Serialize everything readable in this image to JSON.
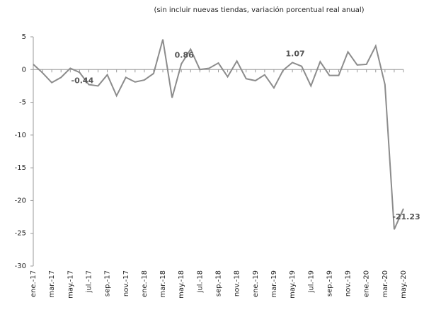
{
  "chart_data": {
    "type": "line",
    "subtitle": "(sin incluir nuevas tiendas, variación porcentual real anual)",
    "categories": [
      "ene.-17",
      null,
      "mar.-17",
      null,
      "may.-17",
      null,
      "jul.-17",
      null,
      "sep.-17",
      null,
      "nov.-17",
      null,
      "ene.-18",
      null,
      "mar.-18",
      null,
      "may.-18",
      null,
      "jul.-18",
      null,
      "sep.-18",
      null,
      "nov.-18",
      null,
      "ene.-19",
      null,
      "mar.-19",
      null,
      "may.-19",
      null,
      "jul.-19",
      null,
      "sep.-19",
      null,
      "nov.-19",
      null,
      "ene.-20",
      null,
      "mar.-20",
      null,
      "may.-20"
    ],
    "series": [
      {
        "name": null,
        "color": "#8c8c8c",
        "values": [
          0.8,
          -0.5,
          -2.0,
          -1.2,
          0.2,
          -0.44,
          -2.3,
          -2.5,
          -0.8,
          -4.0,
          -1.2,
          -1.9,
          -1.6,
          -0.6,
          4.6,
          -4.3,
          0.86,
          3.1,
          0,
          0.2,
          1.0,
          -1.1,
          1.3,
          -1.4,
          -1.7,
          -0.8,
          -2.8,
          -0.1,
          1.07,
          0.5,
          -2.5,
          1.2,
          -0.9,
          -0.9,
          2.7,
          0.7,
          0.8,
          3.6,
          -2.3,
          -24.4,
          -21.23
        ],
        "value_labels": [
          null,
          null,
          null,
          null,
          null,
          "-0.44",
          null,
          null,
          null,
          null,
          null,
          null,
          null,
          null,
          null,
          null,
          "0.86",
          null,
          null,
          null,
          null,
          null,
          null,
          null,
          null,
          null,
          null,
          null,
          "1.07",
          null,
          null,
          null,
          null,
          null,
          null,
          null,
          null,
          null,
          null,
          null,
          "-21.23"
        ]
      }
    ],
    "ylim": [
      -30,
      5
    ],
    "yticks": [
      5,
      0,
      -5,
      -10,
      -15,
      -20,
      -25,
      -30
    ],
    "grid": false
  }
}
